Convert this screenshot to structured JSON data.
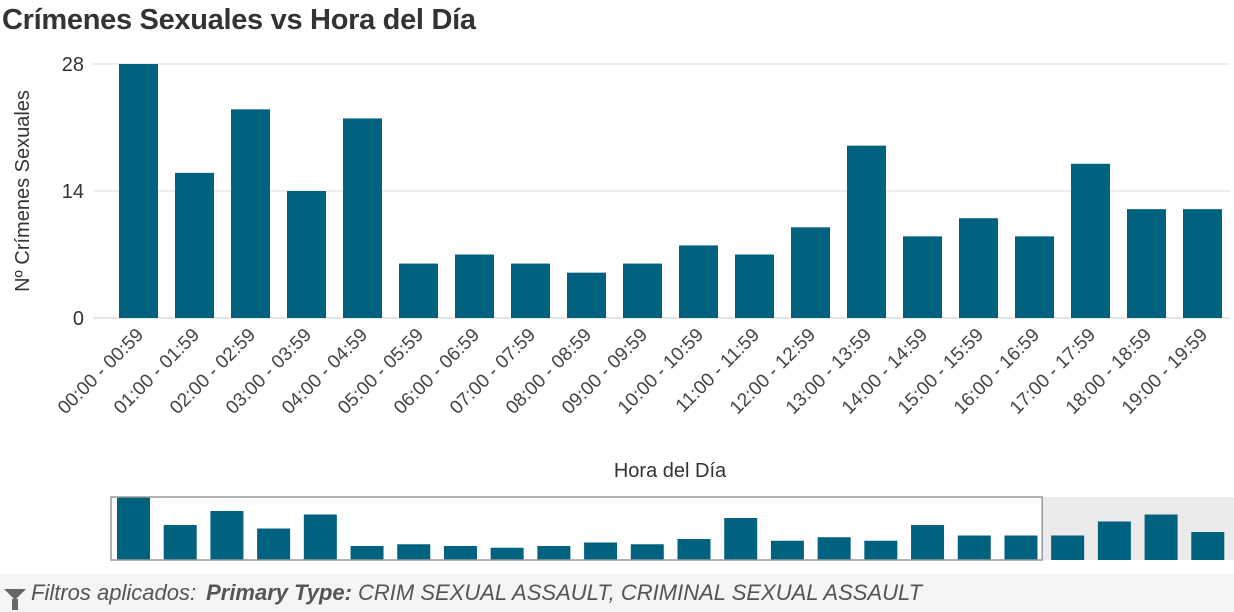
{
  "title": "Crímenes Sexuales vs Hora del Día",
  "footer": {
    "icon": "funnel-icon",
    "label": "Filtros aplicados:",
    "key": "Primary Type:",
    "value": "CRIM SEXUAL ASSAULT, CRIMINAL SEXUAL ASSAULT"
  },
  "colors": {
    "bar": "#00627f",
    "grid": "#dddddd",
    "overview_shade": "#ebebeb"
  },
  "chart_data": {
    "type": "bar",
    "title": "Crímenes Sexuales vs Hora del Día",
    "xlabel": "Hora del Día",
    "ylabel": "Nº Crímenes Sexuales",
    "ylim": [
      0,
      28
    ],
    "yticks": [
      0,
      14,
      28
    ],
    "grid": true,
    "categories": [
      "00:00 - 00:59",
      "01:00 - 01:59",
      "02:00 - 02:59",
      "03:00 - 03:59",
      "04:00 - 04:59",
      "05:00 - 05:59",
      "06:00 - 06:59",
      "07:00 - 07:59",
      "08:00 - 08:59",
      "09:00 - 09:59",
      "10:00 - 10:59",
      "11:00 - 11:59",
      "12:00 - 12:59",
      "13:00 - 13:59",
      "14:00 - 14:59",
      "15:00 - 15:59",
      "16:00 - 16:59",
      "17:00 - 17:59",
      "18:00 - 18:59",
      "19:00 - 19:59"
    ],
    "values": [
      28,
      16,
      23,
      14,
      22,
      6,
      7,
      6,
      5,
      6,
      8,
      7,
      10,
      19,
      9,
      11,
      9,
      17,
      12,
      12
    ],
    "overview": {
      "values": [
        18,
        10,
        14,
        9,
        13,
        4,
        4.5,
        4,
        3.5,
        4,
        5,
        4.5,
        6,
        12,
        5.5,
        6.5,
        5.5,
        10,
        7,
        7,
        7,
        11,
        13,
        8
      ],
      "selected_count": 20
    }
  }
}
